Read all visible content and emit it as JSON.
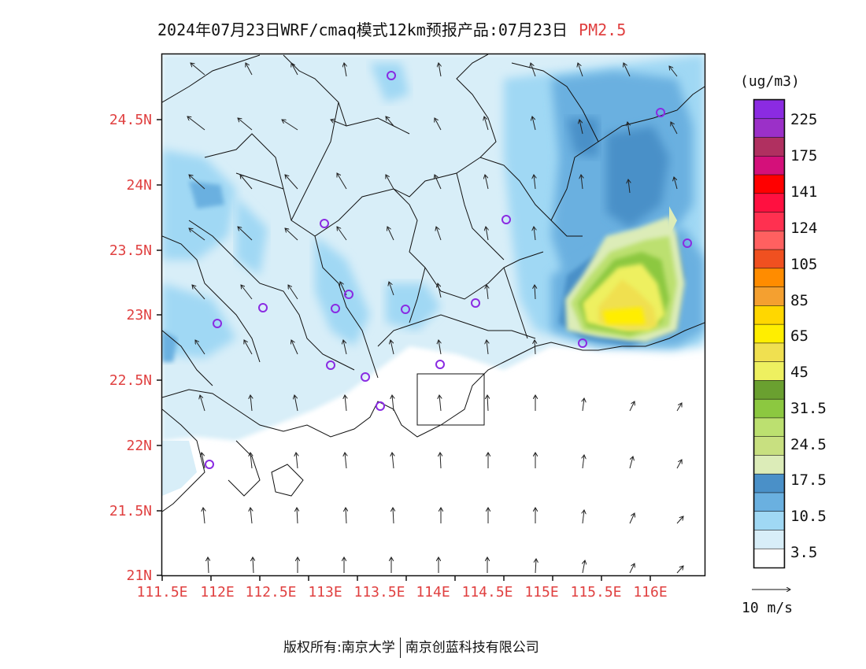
{
  "title": {
    "main": "2024年07月23日WRF/cmaq模式12km预报产品:07月23日",
    "variable": "PM2.5"
  },
  "footer": {
    "copyright": "版权所有:南京大学",
    "company": "南京创蓝科技有限公司"
  },
  "map": {
    "lat_ticks": [
      "24.5N",
      "24N",
      "23.5N",
      "23N",
      "22.5N",
      "22N",
      "21.5N",
      "21N"
    ],
    "lon_ticks": [
      "111.5E",
      "112E",
      "112.5E",
      "113E",
      "113.5E",
      "114E",
      "114.5E",
      "115E",
      "115.5E",
      "116E"
    ],
    "tick_color": "#e04040",
    "station_color": "#8a2be2"
  },
  "legend": {
    "unit": "(ug/m3)",
    "labels": [
      "225",
      "175",
      "141",
      "124",
      "105",
      "85",
      "65",
      "45",
      "31.5",
      "24.5",
      "17.5",
      "10.5",
      "3.5"
    ],
    "colors": [
      "#8b2be2",
      "#9b30c8",
      "#b03060",
      "#d4107a",
      "#ff0000",
      "#ff1040",
      "#ff3050",
      "#ff6060",
      "#f05020",
      "#ff8c00",
      "#f4a030",
      "#ffd700",
      "#ffee00",
      "#f0e050",
      "#eef060",
      "#6aa030",
      "#8cc840",
      "#bce070",
      "#c8e080",
      "#dcecb8",
      "#4a90c8",
      "#6ab0e0",
      "#a0d8f4",
      "#d8eef8",
      "#ffffff"
    ]
  },
  "wind_scale": {
    "label": "10 m/s"
  }
}
